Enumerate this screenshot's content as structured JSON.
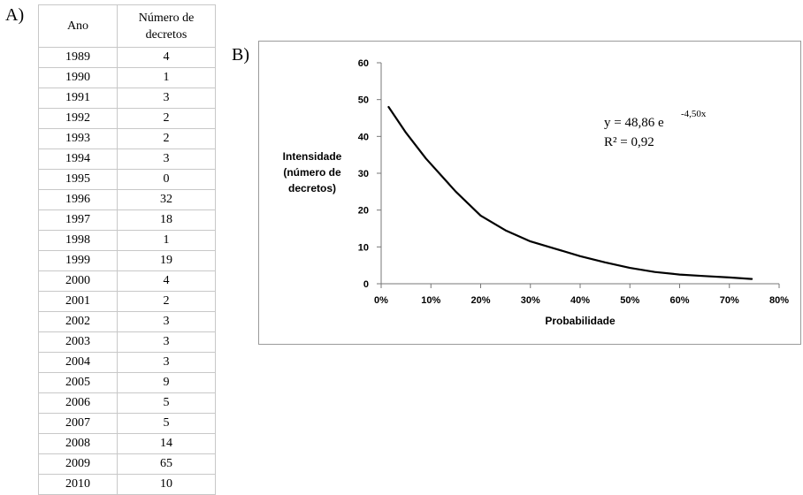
{
  "panel_a_label": "A)",
  "panel_b_label": "B)",
  "table": {
    "header_year": "Ano",
    "header_count_line1": "Número de",
    "header_count_line2": "decretos",
    "rows": [
      {
        "year": "1989",
        "count": "4"
      },
      {
        "year": "1990",
        "count": "1"
      },
      {
        "year": "1991",
        "count": "3"
      },
      {
        "year": "1992",
        "count": "2"
      },
      {
        "year": "1993",
        "count": "2"
      },
      {
        "year": "1994",
        "count": "3"
      },
      {
        "year": "1995",
        "count": "0"
      },
      {
        "year": "1996",
        "count": "32"
      },
      {
        "year": "1997",
        "count": "18"
      },
      {
        "year": "1998",
        "count": "1"
      },
      {
        "year": "1999",
        "count": "19"
      },
      {
        "year": "2000",
        "count": "4"
      },
      {
        "year": "2001",
        "count": "2"
      },
      {
        "year": "2002",
        "count": "3"
      },
      {
        "year": "2003",
        "count": "3"
      },
      {
        "year": "2004",
        "count": "3"
      },
      {
        "year": "2005",
        "count": "9"
      },
      {
        "year": "2006",
        "count": "5"
      },
      {
        "year": "2007",
        "count": "5"
      },
      {
        "year": "2008",
        "count": "14"
      },
      {
        "year": "2009",
        "count": "65"
      },
      {
        "year": "2010",
        "count": "10"
      }
    ]
  },
  "chart_data": {
    "type": "line",
    "title": "",
    "xlabel": "Probabilidade",
    "ylabel_lines": [
      "Intensidade",
      "(número de",
      "decretos)"
    ],
    "xlim": [
      0,
      0.8
    ],
    "ylim": [
      0,
      60
    ],
    "x_ticks": [
      0,
      0.1,
      0.2,
      0.3,
      0.4,
      0.5,
      0.6,
      0.7,
      0.8
    ],
    "x_tick_labels": [
      "0%",
      "10%",
      "20%",
      "30%",
      "40%",
      "50%",
      "60%",
      "70%",
      "80%"
    ],
    "y_ticks": [
      0,
      10,
      20,
      30,
      40,
      50,
      60
    ],
    "y_tick_labels": [
      "0",
      "10",
      "20",
      "30",
      "40",
      "50",
      "60"
    ],
    "grid": false,
    "equation_base": "y = 48,86 e",
    "equation_exponent": "-4,50x",
    "r_squared": "R² = 0,92",
    "series": [
      {
        "x": [
          0.015,
          0.05,
          0.09,
          0.15,
          0.2,
          0.25,
          0.3,
          0.35,
          0.4,
          0.45,
          0.5,
          0.55,
          0.6,
          0.65,
          0.7,
          0.745
        ],
        "y": [
          48,
          41,
          34,
          25,
          18.5,
          14.5,
          11.5,
          9.5,
          7.5,
          5.8,
          4.3,
          3.2,
          2.5,
          2.1,
          1.7,
          1.3
        ]
      }
    ]
  }
}
